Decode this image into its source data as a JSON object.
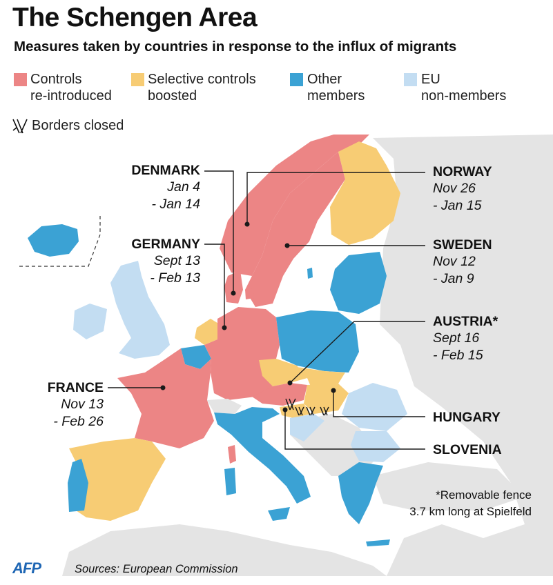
{
  "title": "The Schengen Area",
  "subtitle": "Measures taken by countries in response to the influx of migrants",
  "legend": {
    "controls_reintroduced": {
      "line1": "Controls",
      "line2": "re-introduced",
      "color": "#ec8585"
    },
    "selective_controls": {
      "line1": "Selective controls",
      "line2": "boosted",
      "color": "#f7cc74"
    },
    "other_members": {
      "line1": "Other",
      "line2": "members",
      "color": "#3ba2d4"
    },
    "eu_non_members": {
      "line1": "EU",
      "line2": "non-members",
      "color": "#c3ddf2"
    },
    "borders_closed": {
      "label": "Borders closed",
      "icon": "barbed-wire-icon"
    }
  },
  "colors": {
    "background_land": "#e4e4e4",
    "sea": "#ffffff",
    "leader_line": "#1a1a1a"
  },
  "countries": {
    "denmark": {
      "name": "DENMARK",
      "date_start": "Jan 4",
      "date_end": "- Jan 14"
    },
    "germany": {
      "name": "GERMANY",
      "date_start": "Sept 13",
      "date_end": "- Feb 13"
    },
    "france": {
      "name": "FRANCE",
      "date_start": "Nov 13",
      "date_end": "- Feb 26"
    },
    "norway": {
      "name": "NORWAY",
      "date_start": "Nov 26",
      "date_end": "- Jan 15"
    },
    "sweden": {
      "name": "SWEDEN",
      "date_start": "Nov 12",
      "date_end": "- Jan 9"
    },
    "austria": {
      "name": "AUSTRIA*",
      "date_start": "Sept 16",
      "date_end": "- Feb 15"
    },
    "hungary": {
      "name": "HUNGARY"
    },
    "slovenia": {
      "name": "SLOVENIA"
    }
  },
  "note": {
    "line1": "*Removable fence",
    "line2": "3.7 km long at Spielfeld"
  },
  "logo": "AFP",
  "sources": "Sources: European Commission"
}
